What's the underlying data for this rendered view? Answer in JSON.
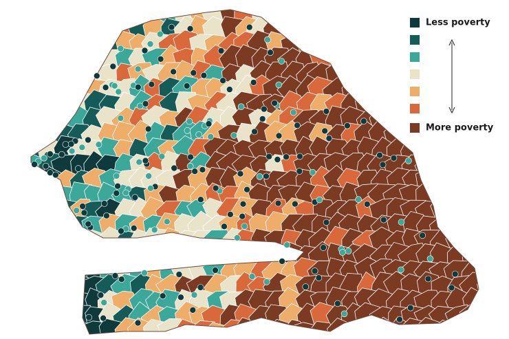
{
  "legend": {
    "items": [
      {
        "label": "Less poverty",
        "color": "#0e3a3c"
      },
      {
        "color": "#155b58"
      },
      {
        "color": "#3ba89a"
      },
      {
        "color": "#e8e3c9"
      },
      {
        "color": "#efad6a"
      },
      {
        "color": "#d9693a"
      },
      {
        "label": "More poverty",
        "color": "#7b3a22"
      }
    ]
  }
}
